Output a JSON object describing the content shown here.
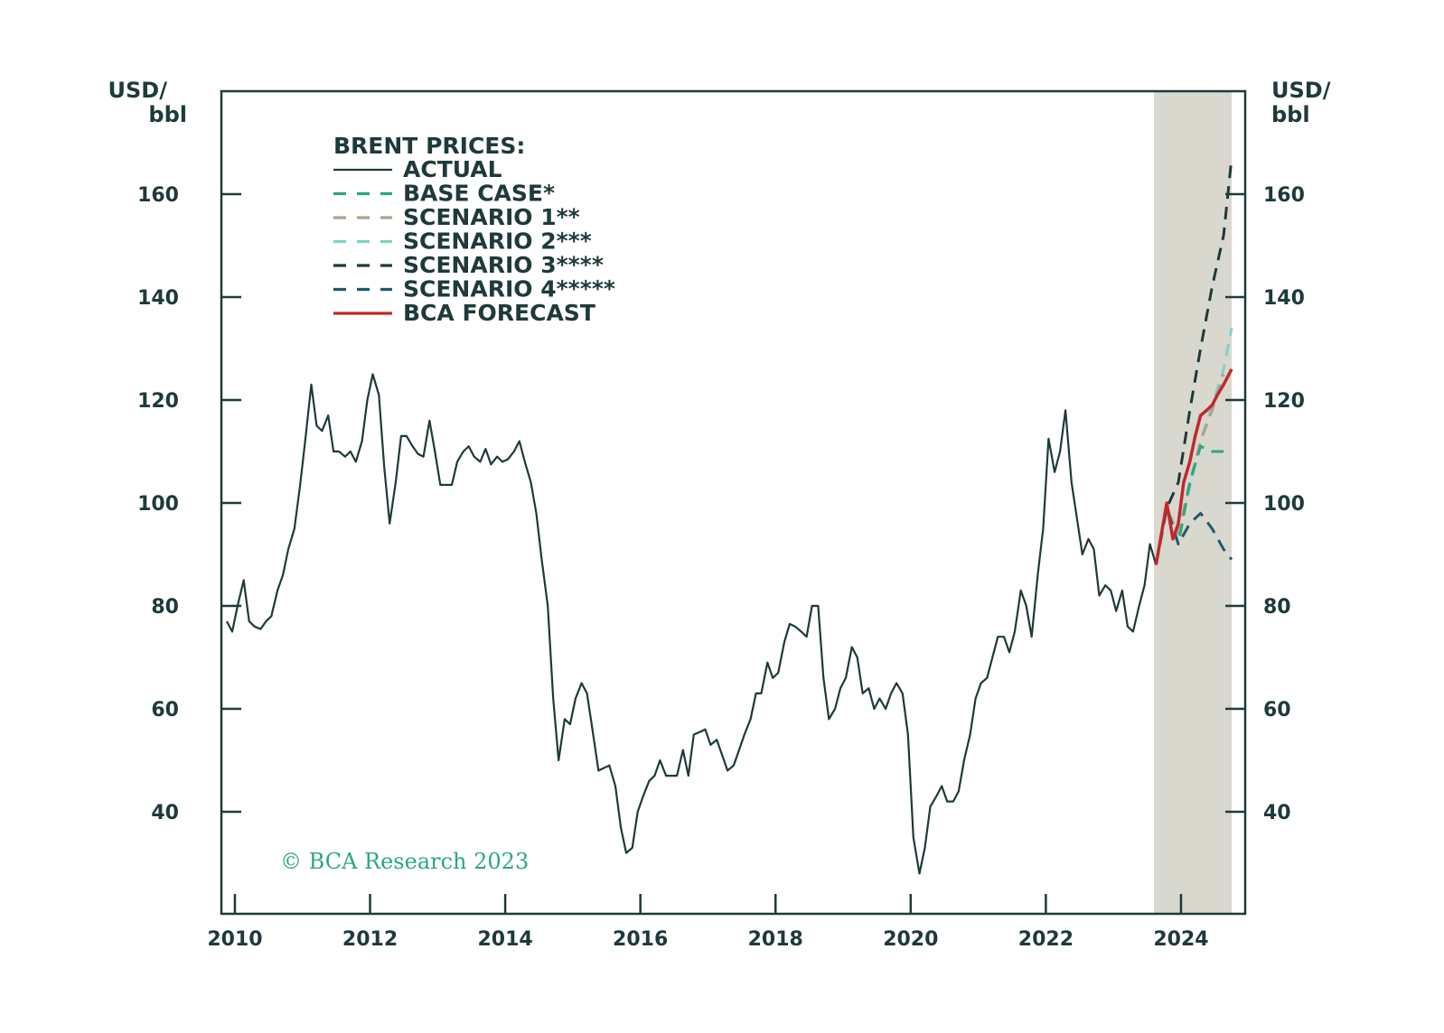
{
  "chart_data": {
    "type": "line",
    "title": "BRENT PRICES:",
    "ylabel_left": "USD/\nbbl",
    "ylabel_right": "USD/\nbbl",
    "ylim": [
      20,
      180
    ],
    "yticks": [
      40,
      60,
      80,
      100,
      120,
      140,
      160
    ],
    "xlim": [
      2009.8,
      2024.95
    ],
    "xticks": [
      2010,
      2012,
      2014,
      2016,
      2018,
      2020,
      2022,
      2024
    ],
    "forecast_shade": [
      2023.6,
      2024.75
    ],
    "copyright": "© BCA Research 2023",
    "colors": {
      "actual": "#1e3a3a",
      "base_case": "#2aa87d",
      "scenario1": "#b0a08f",
      "scenario2": "#7fd2c8",
      "scenario3": "#1e3a3a",
      "scenario4": "#1c5a70",
      "bca_forecast": "#c0282d",
      "shade": "#d9d8cf",
      "frame": "#1e3a3a"
    },
    "series": [
      {
        "key": "actual",
        "name": "ACTUAL",
        "style": "solid",
        "x": [
          2009.88,
          2009.96,
          2010.04,
          2010.13,
          2010.21,
          2010.29,
          2010.38,
          2010.46,
          2010.54,
          2010.63,
          2010.71,
          2010.79,
          2010.88,
          2010.96,
          2011.04,
          2011.13,
          2011.21,
          2011.29,
          2011.38,
          2011.46,
          2011.54,
          2011.63,
          2011.71,
          2011.79,
          2011.88,
          2011.96,
          2012.04,
          2012.13,
          2012.21,
          2012.29,
          2012.38,
          2012.46,
          2012.54,
          2012.63,
          2012.71,
          2012.79,
          2012.88,
          2012.96,
          2013.04,
          2013.13,
          2013.21,
          2013.29,
          2013.38,
          2013.46,
          2013.54,
          2013.63,
          2013.71,
          2013.79,
          2013.88,
          2013.96,
          2014.04,
          2014.13,
          2014.21,
          2014.29,
          2014.38,
          2014.46,
          2014.54,
          2014.63,
          2014.71,
          2014.79,
          2014.88,
          2014.96,
          2015.04,
          2015.13,
          2015.21,
          2015.29,
          2015.38,
          2015.46,
          2015.54,
          2015.63,
          2015.71,
          2015.79,
          2015.88,
          2015.96,
          2016.04,
          2016.13,
          2016.21,
          2016.29,
          2016.38,
          2016.46,
          2016.54,
          2016.63,
          2016.71,
          2016.79,
          2016.88,
          2016.96,
          2017.04,
          2017.13,
          2017.21,
          2017.29,
          2017.38,
          2017.46,
          2017.54,
          2017.63,
          2017.71,
          2017.79,
          2017.88,
          2017.96,
          2018.04,
          2018.13,
          2018.21,
          2018.29,
          2018.38,
          2018.46,
          2018.54,
          2018.63,
          2018.71,
          2018.79,
          2018.88,
          2018.96,
          2019.04,
          2019.13,
          2019.21,
          2019.29,
          2019.38,
          2019.46,
          2019.54,
          2019.63,
          2019.71,
          2019.79,
          2019.88,
          2019.96,
          2020.04,
          2020.13,
          2020.21,
          2020.29,
          2020.38,
          2020.46,
          2020.54,
          2020.63,
          2020.71,
          2020.79,
          2020.88,
          2020.96,
          2021.04,
          2021.13,
          2021.21,
          2021.29,
          2021.38,
          2021.46,
          2021.54,
          2021.63,
          2021.71,
          2021.79,
          2021.88,
          2021.96,
          2022.04,
          2022.13,
          2022.21,
          2022.29,
          2022.38,
          2022.46,
          2022.54,
          2022.63,
          2022.71,
          2022.79,
          2022.88,
          2022.96,
          2023.04,
          2023.13,
          2023.21,
          2023.29,
          2023.38,
          2023.46,
          2023.54,
          2023.63
        ],
        "y": [
          77,
          75,
          80,
          85,
          77,
          76,
          75.5,
          77,
          78,
          83,
          86,
          91,
          95,
          103,
          112,
          123,
          115,
          114,
          117,
          110,
          110,
          109,
          110,
          108,
          112,
          120,
          125,
          121,
          107,
          96,
          104,
          113,
          113,
          111,
          109.5,
          109,
          116,
          110,
          103.5,
          103.5,
          103.5,
          108,
          110,
          111,
          109,
          108,
          110.5,
          107.5,
          109,
          108,
          108.5,
          110,
          112,
          108,
          104,
          98,
          89,
          80,
          62,
          50,
          58,
          57,
          62,
          65,
          63,
          56,
          48,
          48.5,
          49,
          45,
          37,
          32,
          33,
          40,
          43,
          46,
          47,
          50,
          47,
          47,
          47,
          52,
          47,
          55,
          55.5,
          56,
          53,
          54,
          51,
          48,
          49,
          52,
          55,
          58,
          63,
          63,
          69,
          66,
          67,
          73,
          76.5,
          76,
          75,
          74,
          80,
          80,
          66,
          58,
          60,
          64,
          66,
          72,
          70,
          63,
          64,
          60,
          62,
          60,
          63,
          65,
          63,
          55,
          35,
          28,
          33,
          41,
          43,
          45,
          42,
          42,
          44,
          50,
          55,
          62,
          65,
          66,
          70,
          74,
          74,
          71,
          75,
          83,
          80,
          74,
          86,
          95,
          112.5,
          106,
          110,
          118,
          104,
          97,
          90,
          93,
          91,
          82,
          84,
          83,
          79,
          83,
          76,
          75,
          80,
          84,
          92,
          88
        ]
      },
      {
        "key": "scenario3",
        "name": "SCENARIO 3****",
        "style": "dashed",
        "x": [
          2023.63,
          2023.79,
          2023.96,
          2024.13,
          2024.29,
          2024.46,
          2024.63,
          2024.75
        ],
        "y": [
          88,
          99,
          104,
          118,
          130,
          142,
          152,
          167
        ]
      },
      {
        "key": "scenario2",
        "name": "SCENARIO 2***",
        "style": "dashed",
        "x": [
          2023.63,
          2023.79,
          2023.96,
          2024.13,
          2024.29,
          2024.46,
          2024.63,
          2024.75
        ],
        "y": [
          88,
          99,
          94,
          103,
          112,
          119,
          126,
          134
        ]
      },
      {
        "key": "scenario1",
        "name": "SCENARIO 1**",
        "style": "dashed",
        "x": [
          2023.63,
          2023.79,
          2023.96,
          2024.13,
          2024.29,
          2024.46,
          2024.63
        ],
        "y": [
          88,
          99,
          94,
          104,
          112,
          118,
          125
        ]
      },
      {
        "key": "base_case",
        "name": "BASE CASE*",
        "style": "dashed",
        "x": [
          2023.63,
          2023.79,
          2023.96,
          2024.13,
          2024.29,
          2024.46,
          2024.63
        ],
        "y": [
          88,
          99,
          92,
          104,
          111,
          110,
          110
        ]
      },
      {
        "key": "scenario4",
        "name": "SCENARIO 4*****",
        "style": "dashed",
        "x": [
          2023.63,
          2023.79,
          2023.96,
          2024.13,
          2024.29,
          2024.46,
          2024.63,
          2024.75
        ],
        "y": [
          88,
          99,
          92,
          96,
          98,
          95,
          91,
          89
        ]
      },
      {
        "key": "bca_forecast",
        "name": "BCA FORECAST",
        "style": "solid",
        "x": [
          2023.63,
          2023.71,
          2023.79,
          2023.88,
          2023.96,
          2024.04,
          2024.13,
          2024.21,
          2024.29,
          2024.38,
          2024.46,
          2024.54,
          2024.63,
          2024.75
        ],
        "y": [
          88,
          94,
          100,
          93,
          96,
          104,
          108,
          113,
          117,
          118,
          119,
          121,
          123,
          126
        ]
      }
    ],
    "legend": [
      {
        "key": "actual",
        "label": "ACTUAL"
      },
      {
        "key": "base_case",
        "label": "BASE CASE*"
      },
      {
        "key": "scenario1",
        "label": "SCENARIO 1**"
      },
      {
        "key": "scenario2",
        "label": "SCENARIO 2***"
      },
      {
        "key": "scenario3",
        "label": "SCENARIO 3****"
      },
      {
        "key": "scenario4",
        "label": "SCENARIO 4*****"
      },
      {
        "key": "bca_forecast",
        "label": "BCA FORECAST"
      }
    ]
  }
}
